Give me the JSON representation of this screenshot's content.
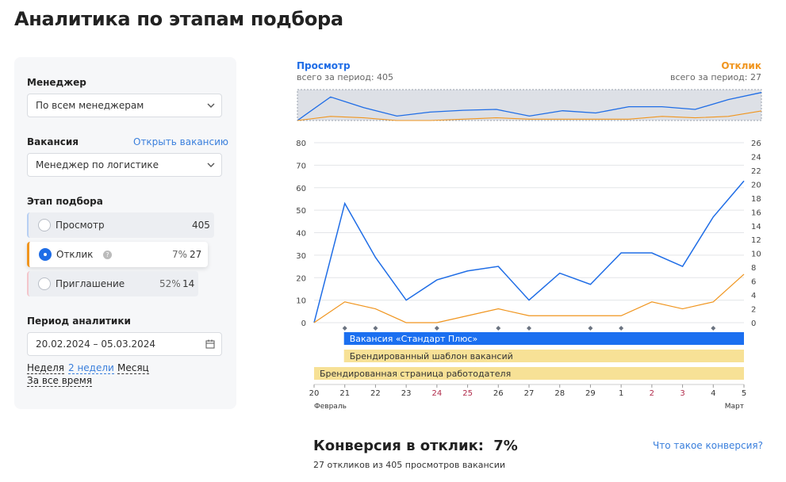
{
  "page": {
    "title": "Аналитика по этапам подбора"
  },
  "filters": {
    "manager_label": "Менеджер",
    "manager_value": "По всем менеджерам",
    "vacancy_label": "Вакансия",
    "vacancy_link": "Открыть вакансию",
    "vacancy_value": "Менеджер по логистике",
    "stage_label": "Этап подбора",
    "stages": [
      {
        "name": "Просмотр",
        "count": "405",
        "percent": ""
      },
      {
        "name": "Отклик",
        "count": "27",
        "percent": "7%"
      },
      {
        "name": "Приглашение",
        "count": "14",
        "percent": "52%"
      }
    ],
    "period_label": "Период аналитики",
    "period_value": "20.02.2024 – 05.03.2024",
    "period_options": [
      "Неделя",
      "2 недели",
      "Месяц",
      "За все время"
    ]
  },
  "chart": {
    "left_series_name": "Просмотр",
    "left_total": "всего за период: 405",
    "right_series_name": "Отклик",
    "right_total": "всего за период: 27",
    "month_start": "Февраль",
    "month_end": "Март",
    "colors": {
      "views": "#1f6de6",
      "responses": "#f0951e",
      "band_blue": "#1b6ff0",
      "band_yellow": "#f7e196"
    },
    "bands": [
      "Вакансия «Стандарт Плюс»",
      "Брендированный шаблон вакансий",
      "Брендированная страница работодателя"
    ]
  },
  "chart_data": {
    "type": "line",
    "categories": [
      "20",
      "21",
      "22",
      "23",
      "24",
      "25",
      "26",
      "27",
      "28",
      "29",
      "1",
      "2",
      "3",
      "4",
      "5"
    ],
    "weekend_categories": [
      "24",
      "25",
      "2",
      "3"
    ],
    "event_markers": [
      "21",
      "22",
      "24",
      "26",
      "27",
      "29",
      "1",
      "4"
    ],
    "series": [
      {
        "name": "Просмотр",
        "axis": "left",
        "values": [
          0,
          53,
          29,
          10,
          19,
          23,
          25,
          10,
          22,
          17,
          31,
          31,
          25,
          47,
          63
        ]
      },
      {
        "name": "Отклик",
        "axis": "right",
        "values": [
          0,
          3,
          2,
          0,
          0,
          1,
          2,
          1,
          1,
          1,
          1,
          3,
          2,
          3,
          7
        ]
      }
    ],
    "y_left": {
      "min": 0,
      "max": 80,
      "ticks": [
        "0",
        "10",
        "20",
        "30",
        "40",
        "50",
        "60",
        "70",
        "80"
      ]
    },
    "y_right": {
      "min": 0,
      "max": 26,
      "ticks": [
        "0",
        "2",
        "4",
        "6",
        "8",
        "10",
        "12",
        "14",
        "16",
        "18",
        "20",
        "22",
        "24",
        "26"
      ]
    },
    "grid": true
  },
  "conversion": {
    "title": "Конверсия в отклик:",
    "value": "7%",
    "subtitle": "27 откликов из 405 просмотров вакансии",
    "help_link": "Что такое конверсия?"
  }
}
